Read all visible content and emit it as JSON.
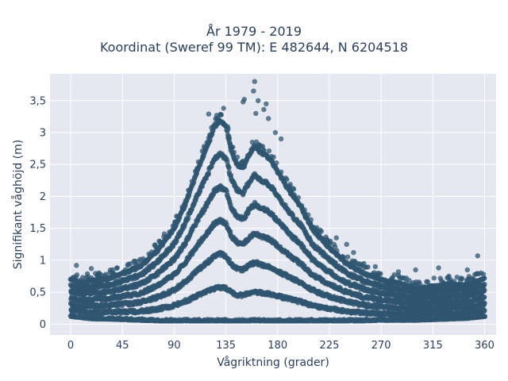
{
  "chart_data": {
    "type": "scatter",
    "title_lines": [
      "År 1979 - 2019",
      "Koordinat (Sweref 99 TM): E 482644, N 6204518"
    ],
    "xlabel": "Vågriktning (grader)",
    "ylabel": "Signifikant våghöjd (m)",
    "xlim": [
      -18,
      370
    ],
    "ylim": [
      -0.17,
      3.92
    ],
    "x_ticks": [
      0,
      45,
      90,
      135,
      180,
      225,
      270,
      315,
      360
    ],
    "x_tick_labels": [
      "0",
      "45",
      "90",
      "135",
      "180",
      "225",
      "270",
      "315",
      "360"
    ],
    "y_ticks": [
      0,
      0.5,
      1,
      1.5,
      2,
      2.5,
      3,
      3.5
    ],
    "y_tick_labels": [
      "0",
      "0,5",
      "1",
      "1,5",
      "2",
      "2,5",
      "3",
      "3,5"
    ],
    "grid": true,
    "marker_color": "#2f5570",
    "plot_background": "#e5e8f0",
    "x_range_observed": [
      0,
      360
    ],
    "envelope": {
      "x": [
        0,
        10,
        20,
        30,
        45,
        60,
        75,
        90,
        100,
        110,
        120,
        125,
        130,
        135,
        140,
        145,
        150,
        155,
        160,
        165,
        170,
        175,
        180,
        190,
        200,
        210,
        225,
        240,
        255,
        270,
        285,
        300,
        315,
        330,
        345,
        360
      ],
      "y_max": [
        0.7,
        0.65,
        0.7,
        0.7,
        0.8,
        0.9,
        1.15,
        1.5,
        1.9,
        2.4,
        2.85,
        3.1,
        3.2,
        3.1,
        2.7,
        2.5,
        2.45,
        2.65,
        2.8,
        2.7,
        2.65,
        2.55,
        2.4,
        2.1,
        1.85,
        1.5,
        1.2,
        0.95,
        0.8,
        0.7,
        0.65,
        0.55,
        0.6,
        0.62,
        0.62,
        0.72
      ],
      "y_min": [
        0.12,
        0.1,
        0.08,
        0.08,
        0.07,
        0.06,
        0.05,
        0.05,
        0.05,
        0.05,
        0.05,
        0.05,
        0.05,
        0.05,
        0.05,
        0.05,
        0.05,
        0.05,
        0.05,
        0.05,
        0.05,
        0.05,
        0.05,
        0.05,
        0.05,
        0.05,
        0.05,
        0.05,
        0.05,
        0.06,
        0.06,
        0.06,
        0.07,
        0.08,
        0.09,
        0.12
      ]
    },
    "outliers": [
      {
        "x": 5,
        "y": 0.92
      },
      {
        "x": 18,
        "y": 0.87
      },
      {
        "x": 120,
        "y": 3.29
      },
      {
        "x": 127,
        "y": 3.27
      },
      {
        "x": 129,
        "y": 3.2
      },
      {
        "x": 133,
        "y": 3.38
      },
      {
        "x": 150,
        "y": 3.48
      },
      {
        "x": 151,
        "y": 3.52
      },
      {
        "x": 160,
        "y": 3.8
      },
      {
        "x": 159,
        "y": 3.65
      },
      {
        "x": 161,
        "y": 3.3
      },
      {
        "x": 163,
        "y": 3.5
      },
      {
        "x": 168,
        "y": 3.36
      },
      {
        "x": 170,
        "y": 3.45
      },
      {
        "x": 172,
        "y": 3.22
      },
      {
        "x": 178,
        "y": 3.0
      },
      {
        "x": 183,
        "y": 2.9
      },
      {
        "x": 231,
        "y": 1.35
      },
      {
        "x": 240,
        "y": 1.25
      },
      {
        "x": 246,
        "y": 1.12
      },
      {
        "x": 255,
        "y": 0.95
      },
      {
        "x": 265,
        "y": 0.9
      },
      {
        "x": 285,
        "y": 0.82
      },
      {
        "x": 300,
        "y": 0.85
      },
      {
        "x": 320,
        "y": 0.88
      },
      {
        "x": 329,
        "y": 0.75
      },
      {
        "x": 345,
        "y": 0.85
      },
      {
        "x": 354,
        "y": 1.07
      },
      {
        "x": 357,
        "y": 0.8
      },
      {
        "x": 358,
        "y": 0.7
      }
    ]
  }
}
